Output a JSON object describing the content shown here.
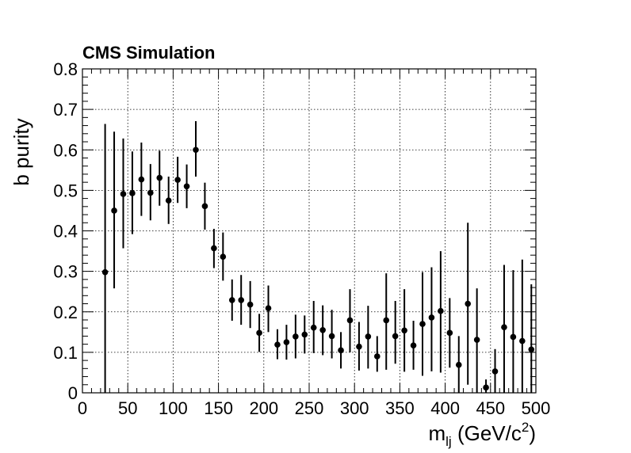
{
  "chart_data": {
    "type": "scatter",
    "title": "CMS Simulation",
    "xlabel_main": "m",
    "xlabel_sub": "lj",
    "xlabel_unit_pre": " (GeV/c",
    "xlabel_unit_sup": "2",
    "xlabel_unit_post": ")",
    "ylabel": "b purity",
    "xlim": [
      0,
      500
    ],
    "ylim": [
      0,
      0.8
    ],
    "xticks": [
      0,
      50,
      100,
      150,
      200,
      250,
      300,
      350,
      400,
      450,
      500
    ],
    "yticks": [
      0,
      0.1,
      0.2,
      0.3,
      0.4,
      0.5,
      0.6,
      0.7,
      0.8
    ],
    "xtick_labels": [
      "0",
      "50",
      "100",
      "150",
      "200",
      "250",
      "300",
      "350",
      "400",
      "450",
      "500"
    ],
    "ytick_labels": [
      "0",
      "0.1",
      "0.2",
      "0.3",
      "0.4",
      "0.5",
      "0.6",
      "0.7",
      "0.8"
    ],
    "grid": true,
    "marker_color": "#000000",
    "points": [
      {
        "x": 25,
        "y": 0.298,
        "lo": 0.0,
        "hi": 0.664
      },
      {
        "x": 35,
        "y": 0.45,
        "lo": 0.258,
        "hi": 0.645
      },
      {
        "x": 45,
        "y": 0.491,
        "lo": 0.357,
        "hi": 0.628
      },
      {
        "x": 55,
        "y": 0.493,
        "lo": 0.392,
        "hi": 0.596
      },
      {
        "x": 65,
        "y": 0.527,
        "lo": 0.437,
        "hi": 0.618
      },
      {
        "x": 75,
        "y": 0.494,
        "lo": 0.426,
        "hi": 0.565
      },
      {
        "x": 85,
        "y": 0.531,
        "lo": 0.462,
        "hi": 0.598
      },
      {
        "x": 95,
        "y": 0.475,
        "lo": 0.417,
        "hi": 0.534
      },
      {
        "x": 105,
        "y": 0.526,
        "lo": 0.469,
        "hi": 0.583
      },
      {
        "x": 115,
        "y": 0.51,
        "lo": 0.456,
        "hi": 0.564
      },
      {
        "x": 125,
        "y": 0.6,
        "lo": 0.534,
        "hi": 0.671
      },
      {
        "x": 135,
        "y": 0.461,
        "lo": 0.403,
        "hi": 0.519
      },
      {
        "x": 145,
        "y": 0.357,
        "lo": 0.308,
        "hi": 0.405
      },
      {
        "x": 155,
        "y": 0.336,
        "lo": 0.277,
        "hi": 0.396
      },
      {
        "x": 165,
        "y": 0.229,
        "lo": 0.178,
        "hi": 0.28
      },
      {
        "x": 175,
        "y": 0.229,
        "lo": 0.168,
        "hi": 0.291
      },
      {
        "x": 185,
        "y": 0.218,
        "lo": 0.16,
        "hi": 0.276
      },
      {
        "x": 195,
        "y": 0.148,
        "lo": 0.101,
        "hi": 0.195
      },
      {
        "x": 205,
        "y": 0.209,
        "lo": 0.15,
        "hi": 0.265
      },
      {
        "x": 215,
        "y": 0.119,
        "lo": 0.083,
        "hi": 0.157
      },
      {
        "x": 225,
        "y": 0.125,
        "lo": 0.082,
        "hi": 0.168
      },
      {
        "x": 235,
        "y": 0.139,
        "lo": 0.085,
        "hi": 0.193
      },
      {
        "x": 245,
        "y": 0.144,
        "lo": 0.097,
        "hi": 0.191
      },
      {
        "x": 255,
        "y": 0.161,
        "lo": 0.098,
        "hi": 0.227
      },
      {
        "x": 265,
        "y": 0.155,
        "lo": 0.093,
        "hi": 0.216
      },
      {
        "x": 275,
        "y": 0.14,
        "lo": 0.085,
        "hi": 0.205
      },
      {
        "x": 285,
        "y": 0.105,
        "lo": 0.06,
        "hi": 0.15
      },
      {
        "x": 295,
        "y": 0.179,
        "lo": 0.1,
        "hi": 0.256
      },
      {
        "x": 305,
        "y": 0.114,
        "lo": 0.055,
        "hi": 0.175
      },
      {
        "x": 315,
        "y": 0.139,
        "lo": 0.06,
        "hi": 0.215
      },
      {
        "x": 325,
        "y": 0.09,
        "lo": 0.052,
        "hi": 0.14
      },
      {
        "x": 335,
        "y": 0.179,
        "lo": 0.057,
        "hi": 0.295
      },
      {
        "x": 345,
        "y": 0.14,
        "lo": 0.072,
        "hi": 0.227
      },
      {
        "x": 355,
        "y": 0.154,
        "lo": 0.052,
        "hi": 0.256
      },
      {
        "x": 365,
        "y": 0.117,
        "lo": 0.057,
        "hi": 0.178
      },
      {
        "x": 375,
        "y": 0.17,
        "lo": 0.042,
        "hi": 0.298
      },
      {
        "x": 385,
        "y": 0.186,
        "lo": 0.053,
        "hi": 0.31
      },
      {
        "x": 395,
        "y": 0.202,
        "lo": 0.05,
        "hi": 0.35
      },
      {
        "x": 405,
        "y": 0.148,
        "lo": 0.062,
        "hi": 0.234
      },
      {
        "x": 415,
        "y": 0.069,
        "lo": 0.0,
        "hi": 0.14
      },
      {
        "x": 425,
        "y": 0.22,
        "lo": 0.02,
        "hi": 0.42
      },
      {
        "x": 435,
        "y": 0.131,
        "lo": 0.0,
        "hi": 0.258
      },
      {
        "x": 445,
        "y": 0.013,
        "lo": 0.0,
        "hi": 0.033
      },
      {
        "x": 455,
        "y": 0.053,
        "lo": 0.0,
        "hi": 0.108
      },
      {
        "x": 465,
        "y": 0.162,
        "lo": 0.0,
        "hi": 0.316
      },
      {
        "x": 475,
        "y": 0.138,
        "lo": 0.0,
        "hi": 0.303
      },
      {
        "x": 485,
        "y": 0.128,
        "lo": 0.0,
        "hi": 0.329
      },
      {
        "x": 495,
        "y": 0.107,
        "lo": 0.0,
        "hi": 0.268
      }
    ]
  }
}
